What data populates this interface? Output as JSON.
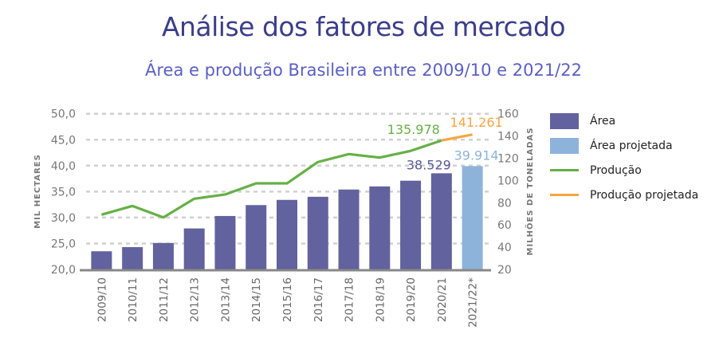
{
  "title": "Análise dos fatores de mercado",
  "subtitle": "Área e produção Brasileira entre 2009/10 e 2021/22",
  "colors": {
    "area": "#62629e",
    "area_proj": "#8db3da",
    "prod": "#65b046",
    "prod_proj": "#f5a742",
    "label_area": "#5a5a9a"
  },
  "chart_data": {
    "type": "bar",
    "categories": [
      "2009/10",
      "2010/11",
      "2011/12",
      "2012/13",
      "2013/14",
      "2014/15",
      "2015/16",
      "2016/17",
      "2017/18",
      "2018/19",
      "2019/20",
      "2020/21",
      "2021/22*"
    ],
    "series": [
      {
        "name": "Área",
        "axis": "left",
        "type": "bar",
        "values": [
          23.5,
          24.3,
          25.1,
          27.9,
          30.3,
          32.4,
          33.4,
          34.0,
          35.4,
          36.0,
          37.1,
          38.529,
          null
        ]
      },
      {
        "name": "Área projetada",
        "axis": "left",
        "type": "bar",
        "values": [
          null,
          null,
          null,
          null,
          null,
          null,
          null,
          null,
          null,
          null,
          null,
          null,
          39.914
        ]
      },
      {
        "name": "Produção",
        "axis": "right",
        "type": "line",
        "values": [
          69.2,
          77.1,
          66.8,
          83.6,
          87.4,
          97.4,
          97.4,
          116.6,
          123.7,
          120.6,
          126.6,
          135.978,
          null
        ]
      },
      {
        "name": "Produção projetada",
        "axis": "right",
        "type": "line",
        "values": [
          null,
          null,
          null,
          null,
          null,
          null,
          null,
          null,
          null,
          null,
          null,
          135.978,
          141.261
        ]
      }
    ],
    "data_labels": {
      "area_2020": "38.529",
      "area_2021": "39.914",
      "prod_2020": "135.978",
      "prod_2021": "141.261"
    },
    "ylabel": "MIL HECTARES",
    "y2label": "MILHÕES DE TONELADAS",
    "ylim": [
      20,
      50
    ],
    "y2lim": [
      20,
      160
    ],
    "yticks": [
      "20,0",
      "25,0",
      "30,0",
      "35,0",
      "40,0",
      "45,0",
      "50,0"
    ],
    "y2ticks": [
      "20",
      "40",
      "60",
      "80",
      "100",
      "120",
      "140",
      "160"
    ],
    "legend": [
      "Área",
      "Área projetada",
      "Produção",
      "Produção projetada"
    ],
    "legend_position": "right",
    "grid": true
  }
}
